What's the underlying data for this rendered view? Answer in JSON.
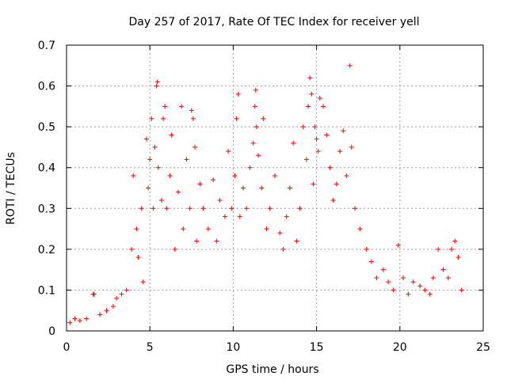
{
  "chart_data": {
    "type": "scatter",
    "title": "Day 257 of 2017, Rate Of TEC Index for receiver yell",
    "xlabel": "GPS time / hours",
    "ylabel": "ROTI / TECUs",
    "xlim": [
      0,
      25
    ],
    "ylim": [
      0,
      0.7
    ],
    "xticks": [
      "0",
      "5",
      "10",
      "15",
      "20",
      "25"
    ],
    "yticks": [
      "0",
      "0.1",
      "0.2",
      "0.3",
      "0.4",
      "0.5",
      "0.6",
      "0.7"
    ],
    "marker": "+",
    "color": "#ff0000",
    "grid": true,
    "series": [
      {
        "x": [
          0.2,
          0.5,
          0.8,
          1.2,
          1.6,
          1.65,
          2.0,
          2.4,
          2.8,
          3.0,
          3.3,
          3.6,
          3.9,
          4.0,
          4.2,
          4.3,
          4.5,
          4.6,
          4.8,
          4.9,
          5.0,
          5.1,
          5.2,
          5.3,
          5.4,
          5.45,
          5.5,
          5.7,
          5.8,
          5.9,
          6.0,
          6.2,
          6.3,
          6.5,
          6.7,
          6.9,
          7.0,
          7.2,
          7.4,
          7.5,
          7.6,
          7.7,
          7.8,
          8.0,
          8.2,
          8.5,
          8.8,
          9.0,
          9.2,
          9.5,
          9.7,
          9.9,
          10.1,
          10.2,
          10.3,
          10.4,
          10.6,
          10.8,
          11.0,
          11.2,
          11.3,
          11.35,
          11.4,
          11.5,
          11.7,
          11.8,
          12.0,
          12.2,
          12.5,
          12.8,
          13.0,
          13.2,
          13.4,
          13.6,
          13.8,
          14.0,
          14.2,
          14.4,
          14.5,
          14.6,
          14.7,
          14.8,
          14.9,
          15.0,
          15.1,
          15.2,
          15.4,
          15.6,
          15.8,
          16.0,
          16.2,
          16.4,
          16.6,
          16.8,
          17.0,
          17.1,
          17.3,
          17.6,
          18.0,
          18.3,
          18.6,
          19.0,
          19.3,
          19.6,
          19.9,
          20.2,
          20.5,
          20.8,
          21.2,
          21.5,
          21.8,
          22.0,
          22.3,
          22.6,
          22.9,
          23.1,
          23.3,
          23.5,
          23.7
        ],
        "y": [
          0.02,
          0.03,
          0.025,
          0.03,
          0.09,
          0.09,
          0.04,
          0.05,
          0.06,
          0.08,
          0.09,
          0.1,
          0.2,
          0.38,
          0.25,
          0.18,
          0.3,
          0.12,
          0.47,
          0.35,
          0.42,
          0.52,
          0.3,
          0.45,
          0.6,
          0.61,
          0.4,
          0.32,
          0.52,
          0.55,
          0.3,
          0.38,
          0.48,
          0.2,
          0.34,
          0.55,
          0.25,
          0.42,
          0.3,
          0.54,
          0.52,
          0.45,
          0.22,
          0.36,
          0.3,
          0.25,
          0.37,
          0.22,
          0.32,
          0.28,
          0.44,
          0.3,
          0.38,
          0.52,
          0.58,
          0.28,
          0.35,
          0.3,
          0.4,
          0.46,
          0.55,
          0.59,
          0.5,
          0.43,
          0.35,
          0.52,
          0.25,
          0.3,
          0.38,
          0.24,
          0.2,
          0.28,
          0.35,
          0.46,
          0.22,
          0.3,
          0.5,
          0.42,
          0.55,
          0.62,
          0.58,
          0.36,
          0.5,
          0.47,
          0.44,
          0.57,
          0.55,
          0.48,
          0.4,
          0.32,
          0.36,
          0.44,
          0.49,
          0.38,
          0.65,
          0.45,
          0.3,
          0.25,
          0.2,
          0.17,
          0.13,
          0.15,
          0.12,
          0.1,
          0.21,
          0.13,
          0.09,
          0.12,
          0.11,
          0.1,
          0.09,
          0.13,
          0.2,
          0.15,
          0.13,
          0.2,
          0.22,
          0.18,
          0.1
        ]
      }
    ]
  }
}
